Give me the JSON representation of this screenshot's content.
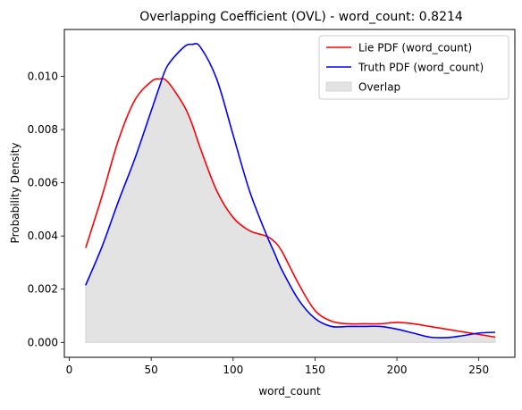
{
  "chart_data": {
    "type": "line",
    "title": "Overlapping Coefficient (OVL) - word_count: 0.8214",
    "xlabel": "word_count",
    "ylabel": "Probability Density",
    "xlim": [
      -3,
      272
    ],
    "ylim": [
      -0.00056,
      0.01176
    ],
    "xticks": [
      0,
      50,
      100,
      150,
      200,
      250
    ],
    "yticks": [
      0.0,
      0.002,
      0.004,
      0.006,
      0.008,
      0.01
    ],
    "ytick_labels": [
      "0.000",
      "0.002",
      "0.004",
      "0.006",
      "0.008",
      "0.010"
    ],
    "grid": false,
    "legend_position": "top-right",
    "x": [
      10,
      20,
      30,
      40,
      50,
      55,
      60,
      70,
      75,
      80,
      90,
      100,
      110,
      120,
      125,
      130,
      140,
      150,
      160,
      170,
      180,
      190,
      200,
      210,
      220,
      230,
      240,
      250,
      260
    ],
    "series": [
      {
        "name": "Lie PDF (word_count)",
        "color": "#ff0000",
        "values": [
          0.00355,
          0.0055,
          0.0076,
          0.0091,
          0.0098,
          0.0099,
          0.0098,
          0.0089,
          0.0082,
          0.0073,
          0.0057,
          0.0047,
          0.0042,
          0.004,
          0.0038,
          0.0034,
          0.0022,
          0.0012,
          0.0008,
          0.0007,
          0.0007,
          0.0007,
          0.00075,
          0.0007,
          0.0006,
          0.0005,
          0.0004,
          0.0003,
          0.0002
        ]
      },
      {
        "name": "Truth PDF (word_count)",
        "color": "#0000ff",
        "values": [
          0.00215,
          0.0036,
          0.0053,
          0.0069,
          0.0087,
          0.0096,
          0.0104,
          0.0111,
          0.0112,
          0.0111,
          0.0099,
          0.0078,
          0.0057,
          0.0041,
          0.0034,
          0.0027,
          0.0016,
          0.0009,
          0.0006,
          0.0006,
          0.0006,
          0.0006,
          0.0005,
          0.00035,
          0.0002,
          0.00018,
          0.00025,
          0.00035,
          0.00038
        ]
      }
    ],
    "overlap": {
      "name": "Overlap",
      "color": "#e3e3e3"
    }
  }
}
